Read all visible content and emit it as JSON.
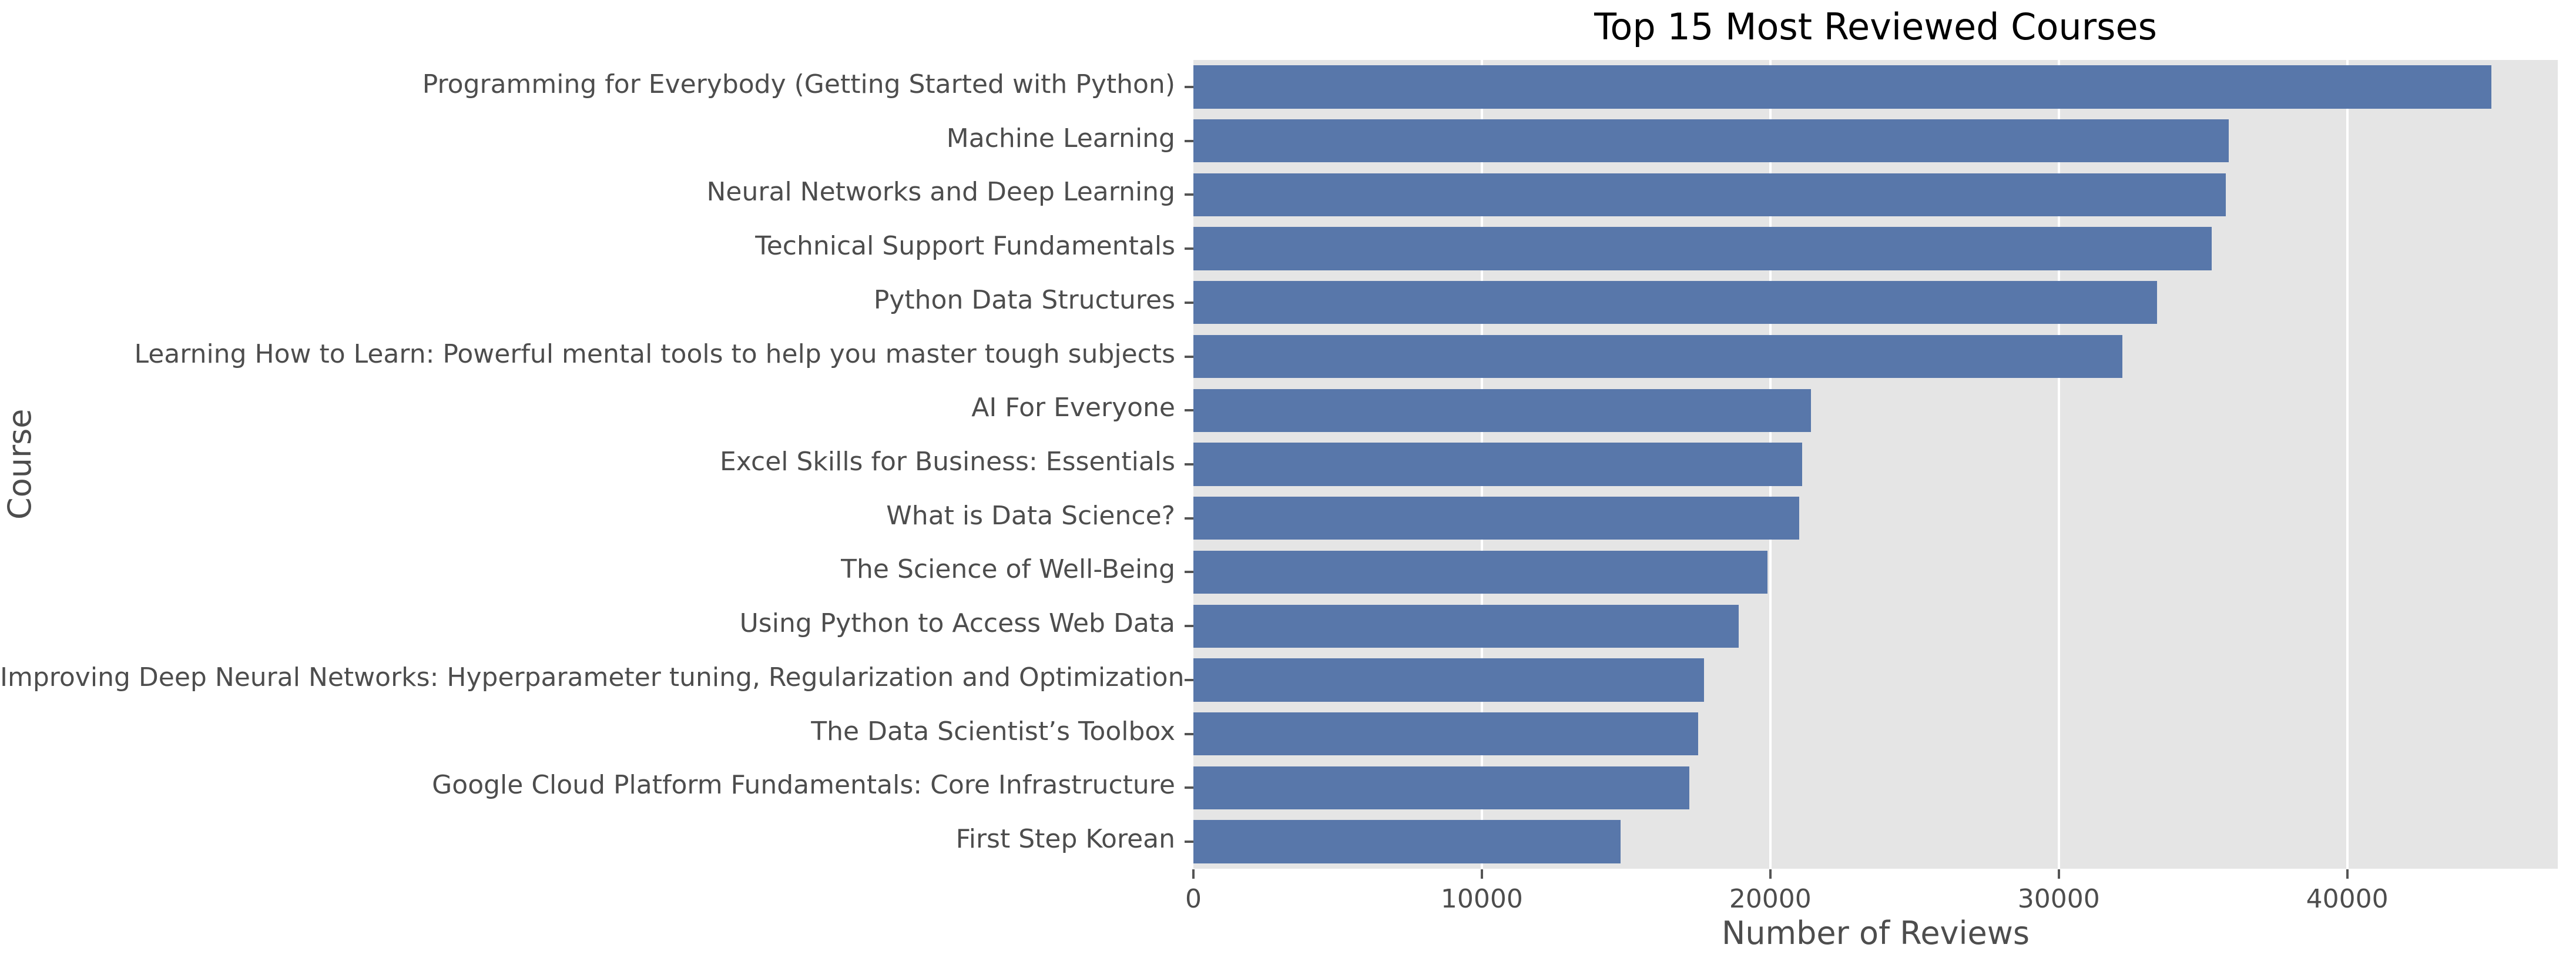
{
  "colors": {
    "bar": "#5877aa",
    "plot_background": "#e5e5e5",
    "gridline": "#ffffff",
    "figure_background": "#ffffff",
    "tick_text": "#4d4d4d",
    "title_text": "#000000",
    "tick_mark": "#555555"
  },
  "chart_data": {
    "type": "bar",
    "orientation": "horizontal",
    "title": "Top 15 Most Reviewed Courses",
    "xlabel": "Number of Reviews",
    "ylabel": "Course",
    "categories": [
      "Programming for Everybody (Getting Started with Python)",
      "Machine Learning",
      "Neural Networks and Deep Learning",
      "Technical Support Fundamentals",
      "Python Data Structures",
      "Learning How to Learn: Powerful mental tools to help you master tough subjects",
      "AI For Everyone",
      "Excel Skills for Business: Essentials",
      "What is Data Science?",
      "The Science of Well-Being",
      "Using Python to Access Web Data",
      "Improving Deep Neural Networks: Hyperparameter tuning, Regularization and Optimization",
      "The Data Scientist’s Toolbox",
      "Google Cloud Platform Fundamentals: Core Infrastructure",
      "First Step Korean"
    ],
    "values": [
      45000,
      35900,
      35800,
      35300,
      33400,
      32200,
      21400,
      21100,
      21000,
      19900,
      18900,
      17700,
      17500,
      17200,
      14800
    ],
    "xlim": [
      0,
      47300
    ],
    "xticks": {
      "values": [
        0,
        10000,
        20000,
        30000,
        40000
      ],
      "labels": [
        "0",
        "10000",
        "20000",
        "30000",
        "40000"
      ]
    },
    "grid": "vertical-white-on-grey",
    "legend": "none",
    "bar_fill_fraction": 0.8
  }
}
